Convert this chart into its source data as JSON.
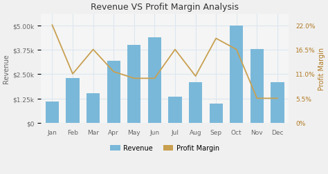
{
  "title": "Revenue VS Profit Margin Analysis",
  "months": [
    "Jan",
    "Feb",
    "Mar",
    "Apr",
    "May",
    "Jun",
    "Jul",
    "Aug",
    "Sep",
    "Oct",
    "Nov",
    "Dec"
  ],
  "revenue": [
    1100,
    2300,
    1500,
    3200,
    4000,
    4400,
    1350,
    2100,
    1000,
    5000,
    3800,
    2100
  ],
  "profit_margin": [
    22.0,
    11.0,
    16.5,
    11.5,
    10.0,
    10.0,
    16.5,
    10.5,
    19.0,
    16.5,
    5.5,
    5.5
  ],
  "bar_color": "#7ab8d9",
  "line_color": "#c8a050",
  "revenue_ylim": [
    0,
    5600
  ],
  "profit_ylim": [
    0,
    24.5
  ],
  "revenue_yticks": [
    0,
    1250,
    2500,
    3750,
    5000
  ],
  "revenue_ytick_labels": [
    "$0",
    "$1.25k",
    "$2.50k",
    "$3.75k",
    "$5.00k"
  ],
  "profit_yticks": [
    0,
    5.5,
    11.0,
    16.5,
    22.0
  ],
  "profit_ytick_labels": [
    "0%",
    "5.5%",
    "11.0%",
    "16.5%",
    "22.0%"
  ],
  "ylabel_left": "Revenue",
  "ylabel_right": "Profit Margin",
  "fig_bg_color": "#f0f0f0",
  "plot_bg_color": "#f5f5f5",
  "grid_color": "#dce6f0",
  "legend_labels": [
    "Revenue",
    "Profit Margin"
  ],
  "title_fontsize": 9,
  "axis_fontsize": 6.5,
  "label_fontsize": 7
}
